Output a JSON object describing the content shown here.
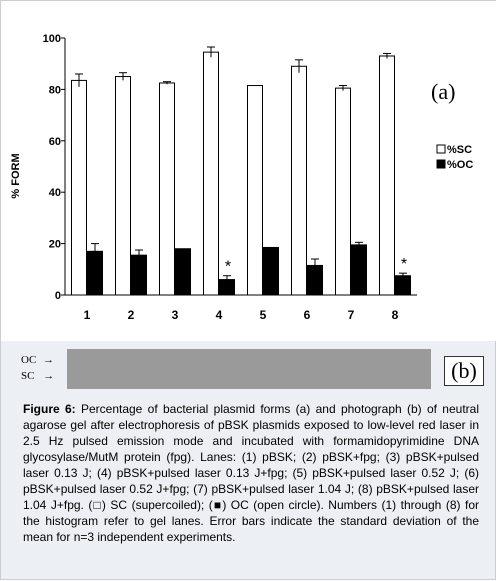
{
  "chart_data": {
    "type": "bar",
    "panel_label": "(a)",
    "ylabel": "% FORM",
    "ylim": [
      0,
      100
    ],
    "yticks": [
      0,
      20,
      40,
      60,
      80,
      100
    ],
    "categories": [
      "1",
      "2",
      "3",
      "4",
      "5",
      "6",
      "7",
      "8"
    ],
    "legend_position": "right",
    "series": [
      {
        "name": "%SC",
        "color": "#ffffff",
        "values": [
          83.5,
          85,
          82.5,
          94.5,
          81.5,
          89,
          80.5,
          93
        ],
        "errors": [
          2.5,
          1.5,
          0.5,
          2,
          0,
          2.5,
          1,
          1
        ]
      },
      {
        "name": "%OC",
        "color": "#000000",
        "values": [
          17,
          15.5,
          18,
          6,
          18.5,
          11.5,
          19.5,
          7.5
        ],
        "errors": [
          3,
          2,
          0,
          1.5,
          0,
          2.5,
          1,
          1
        ]
      }
    ],
    "annotations": [
      {
        "category": "4",
        "series": "%OC",
        "text": "*"
      },
      {
        "category": "8",
        "series": "%OC",
        "text": "*"
      }
    ]
  },
  "gel": {
    "panel_label": "(b)",
    "markers": [
      "OC",
      "SC"
    ],
    "arrow": "→"
  },
  "caption": {
    "label": "Figure 6:",
    "text": " Percentage of bacterial plasmid forms (a) and photograph (b) of neutral agarose gel after electrophoresis of pBSK plasmids exposed to low-level red laser in 2.5 Hz pulsed emission mode and incubated with formamidopyrimidine DNA glycosylase/MutM protein (fpg). Lanes: (1) pBSK; (2) pBSK+fpg; (3) pBSK+pulsed laser 0.13 J; (4) pBSK+pulsed laser 0.13 J+fpg; (5) pBSK+pulsed laser 0.52 J; (6) pBSK+pulsed laser 0.52 J+fpg; (7) pBSK+pulsed laser 1.04 J; (8) pBSK+pulsed laser 1.04 J+fpg. (□) SC (supercoiled); (■) OC (open circle). Numbers (1) through (8) for the histogram refer to gel lanes. Error bars indicate the standard deviation of the mean for n=3 independent experiments."
  }
}
